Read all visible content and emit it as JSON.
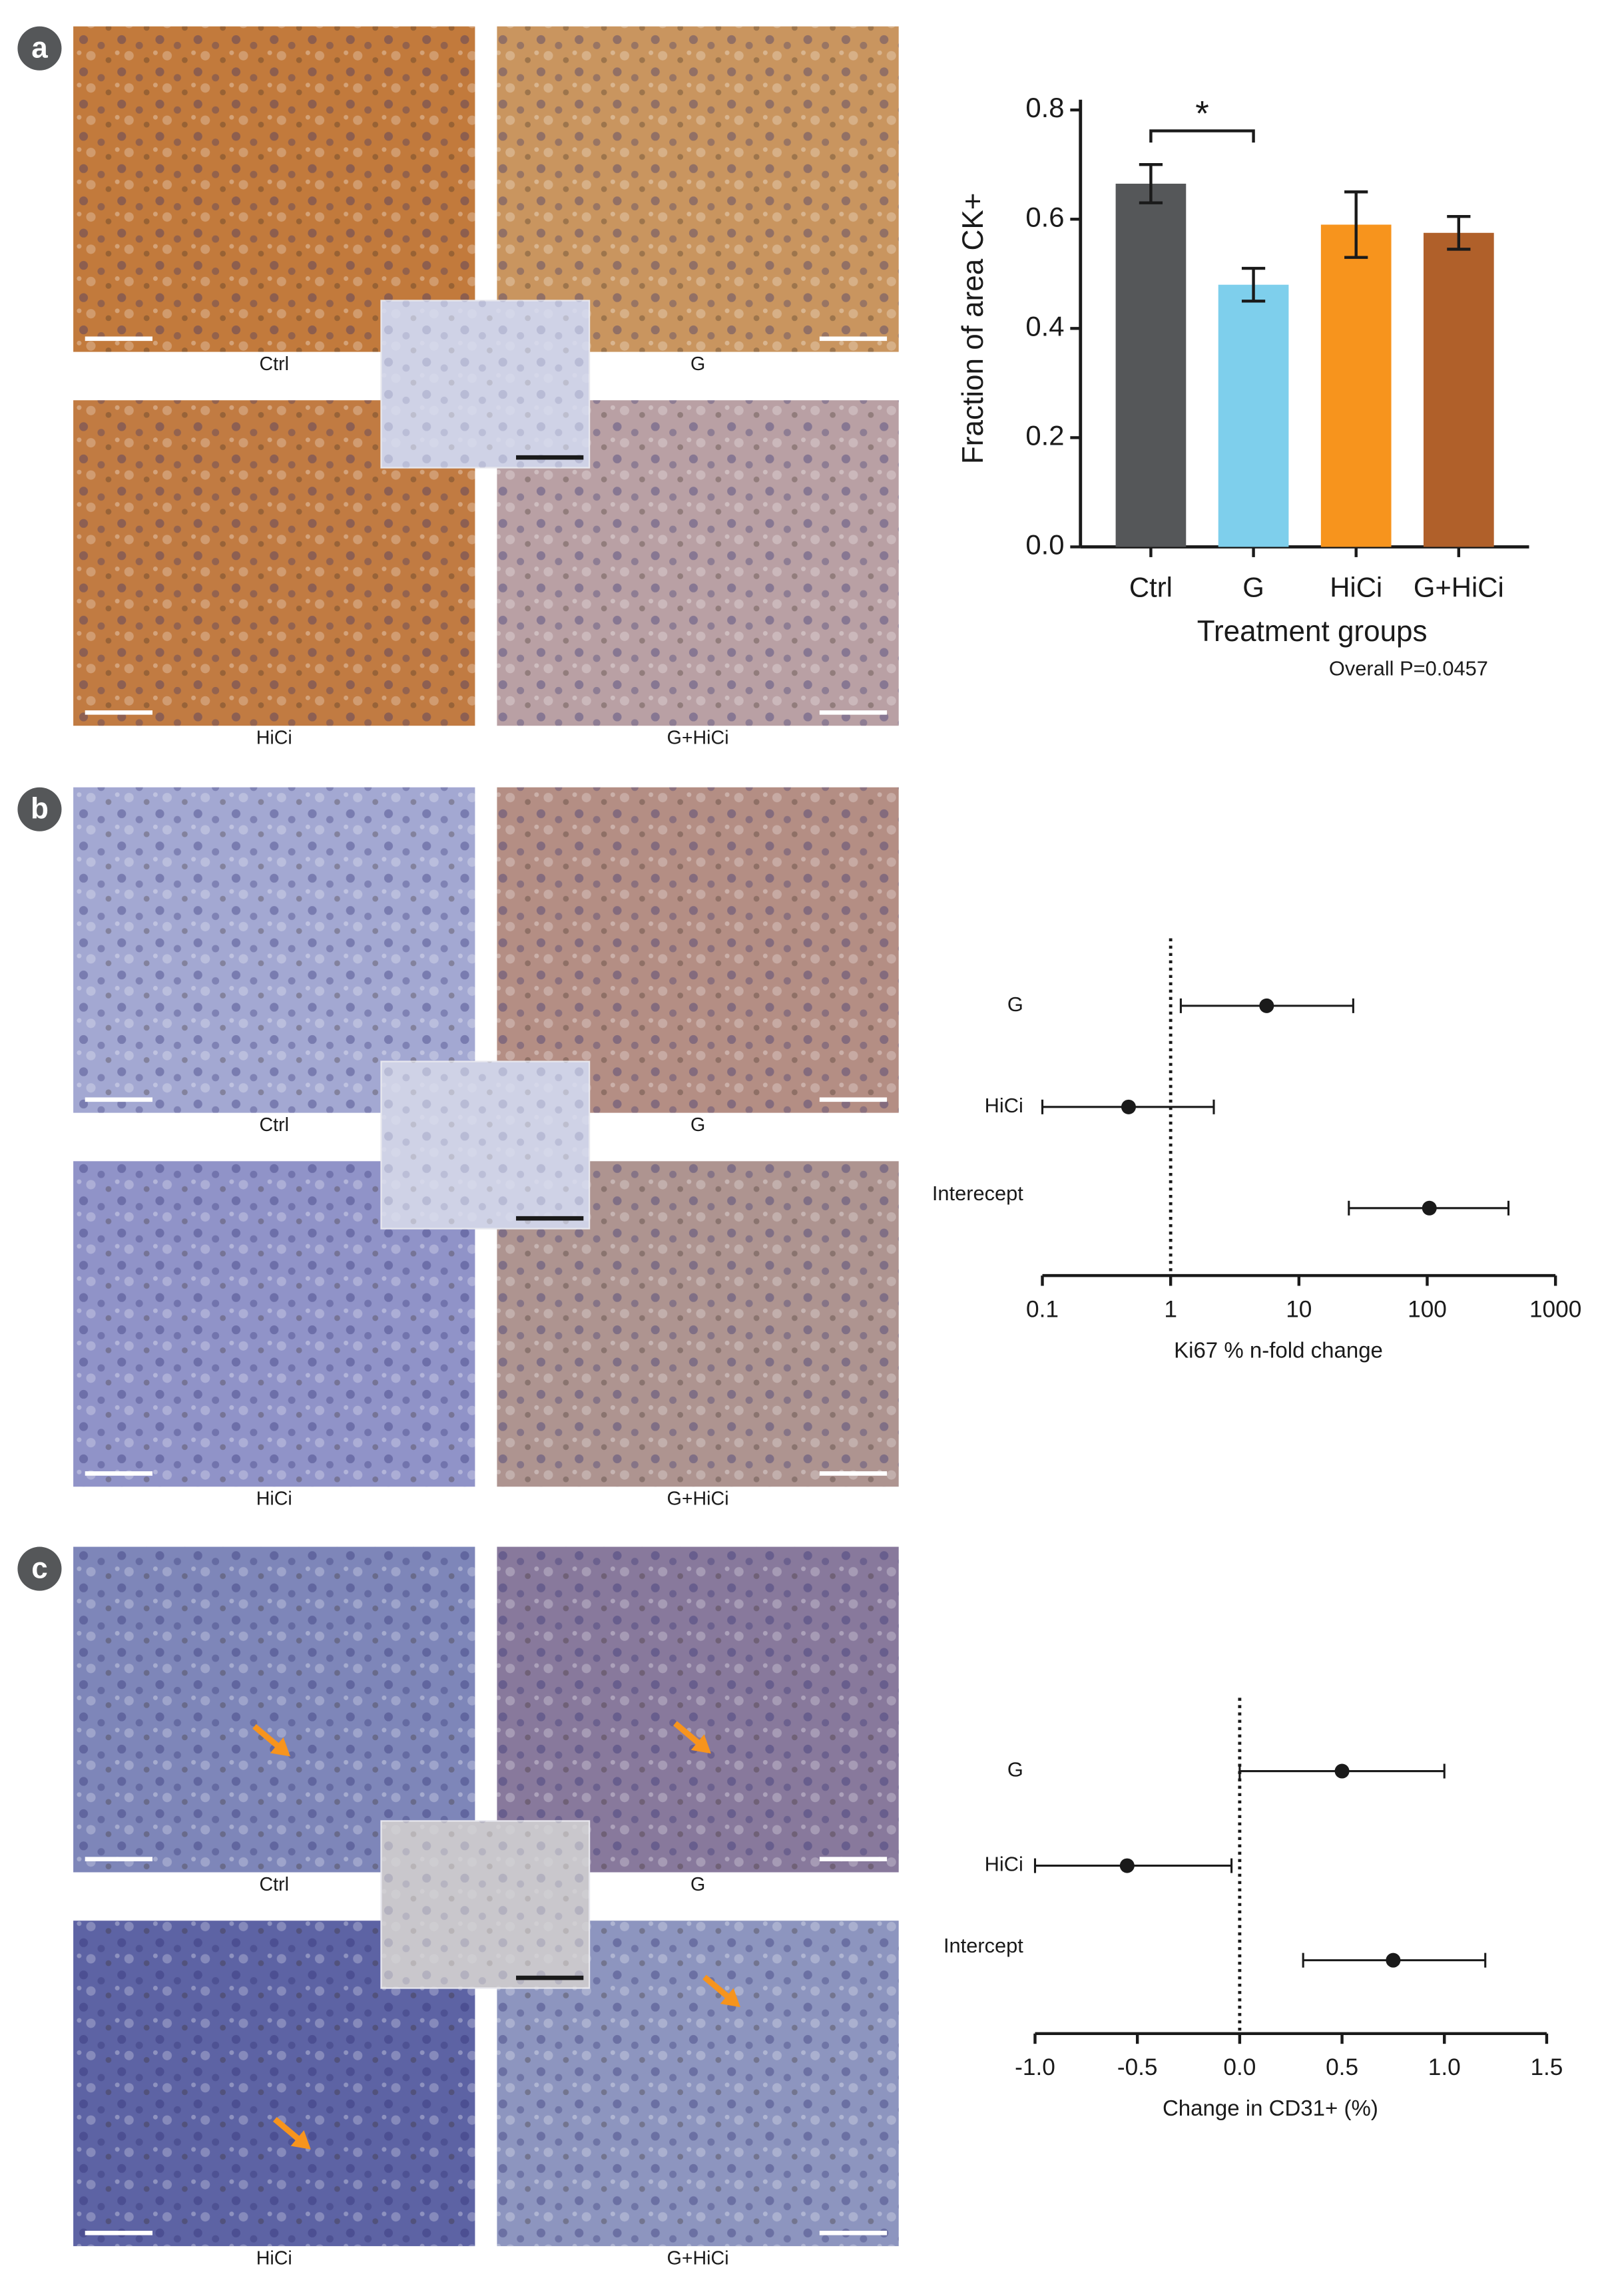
{
  "figure_panels": [
    {
      "letter": "a",
      "images": [
        "Ctrl",
        "G",
        "HiCi",
        "G+HiCi"
      ]
    },
    {
      "letter": "b",
      "images": [
        "Ctrl",
        "G",
        "HiCi",
        "G+HiCi"
      ]
    },
    {
      "letter": "c",
      "images": [
        "Ctrl",
        "G",
        "HiCi",
        "G+HiCi"
      ]
    }
  ],
  "chart_data": [
    {
      "type": "bar",
      "categories": [
        "Ctrl",
        "G",
        "HiCi",
        "G+HiCi"
      ],
      "values": [
        0.665,
        0.48,
        0.59,
        0.575
      ],
      "errors": [
        0.035,
        0.03,
        0.06,
        0.03
      ],
      "colors": [
        "#555759",
        "#7ecfec",
        "#f7941d",
        "#b0602a"
      ],
      "ylim": [
        0,
        0.8
      ],
      "yticks": [
        {
          "value": 0,
          "label": "0.0"
        },
        0.2,
        0.4,
        0.6,
        0.8
      ],
      "y_label": "Fraction of area CK+",
      "x_label": "Treatment groups",
      "annotation": "Overall P=0.0457",
      "significance": {
        "label": "*",
        "between": [
          "Ctrl",
          "G"
        ]
      }
    },
    {
      "type": "forest",
      "categories": [
        "G",
        "HiCi",
        "Interecept"
      ],
      "values": [
        5.6,
        0.47,
        104
      ],
      "lower": [
        1.2,
        0.1,
        24.5
      ],
      "upper": [
        26.5,
        2.17,
        430
      ],
      "xscale": "log",
      "xlim": [
        0.1,
        1000
      ],
      "xticks": [
        0.1,
        1,
        10,
        100,
        1000
      ],
      "reference": 1,
      "x_label": "Ki67 % n-fold change",
      "color": "#1a1a1a"
    },
    {
      "type": "forest",
      "categories": [
        "G",
        "HiCi",
        "Intercept"
      ],
      "values": [
        0.5,
        -0.55,
        0.75
      ],
      "lower": [
        0,
        -1.0,
        0.31
      ],
      "upper": [
        1.0,
        -0.04,
        1.2
      ],
      "xscale": "linear",
      "xlim": [
        -1,
        1.5
      ],
      "xticks": [
        {
          "value": -1,
          "label": "-1.0"
        },
        -0.5,
        {
          "value": 0,
          "label": "0.0"
        },
        0.5,
        {
          "value": 1,
          "label": "1.0"
        },
        1.5
      ],
      "reference": 0,
      "x_label": "Change in CD31+ (%)",
      "color": "#1a1a1a"
    }
  ]
}
